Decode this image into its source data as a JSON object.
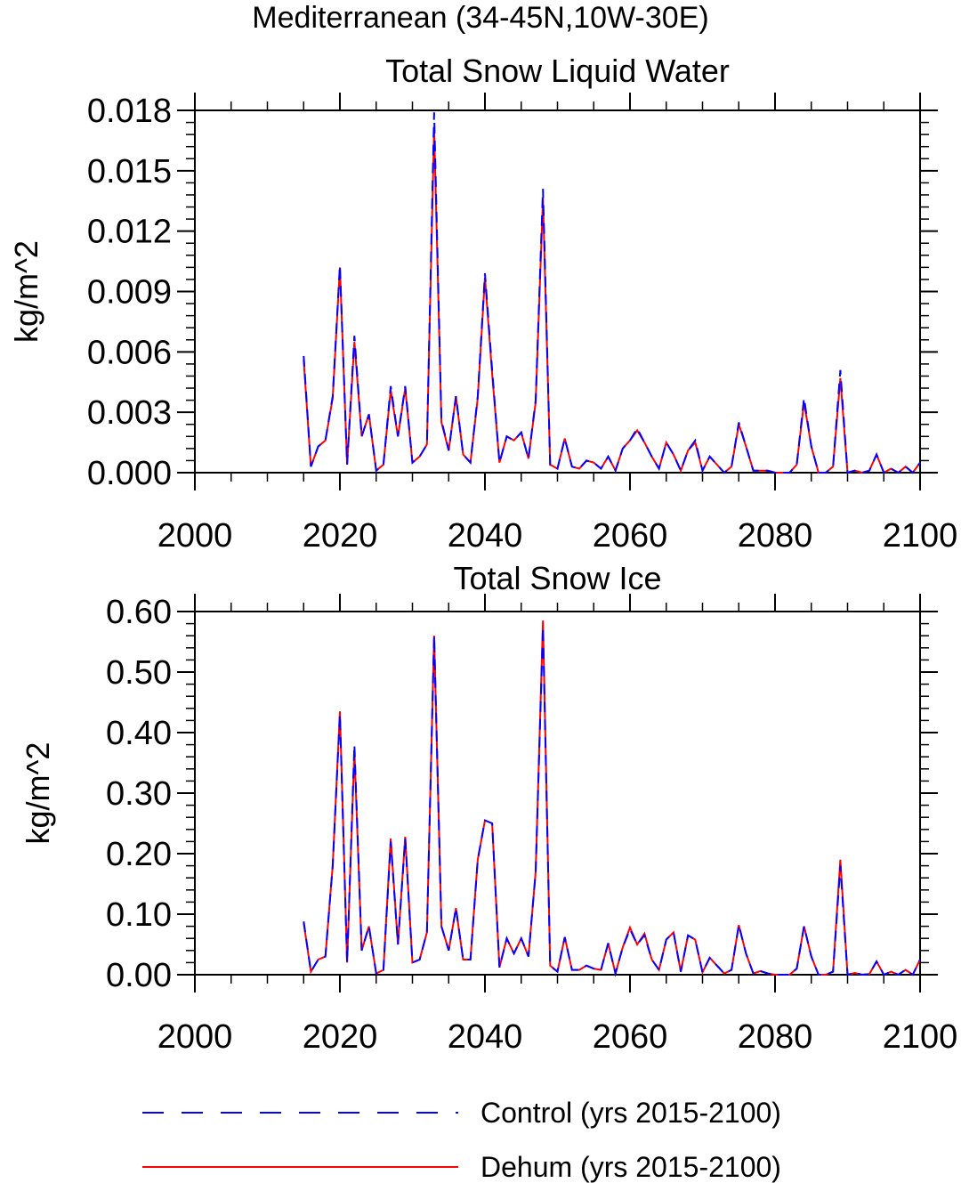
{
  "page_title": "Mediterranean (34-45N,10W-30E)",
  "chart_data": [
    {
      "type": "line",
      "title": "Total Snow Liquid Water",
      "ylabel": "kg/m^2",
      "xlim": [
        2000,
        2100
      ],
      "ylim": [
        0,
        0.018
      ],
      "xticks": [
        "2000",
        "2020",
        "2040",
        "2060",
        "2080",
        "2100"
      ],
      "yticks": [
        "0.000",
        "0.003",
        "0.006",
        "0.009",
        "0.012",
        "0.015",
        "0.018"
      ],
      "x": [
        2015,
        2016,
        2017,
        2018,
        2019,
        2020,
        2021,
        2022,
        2023,
        2024,
        2025,
        2026,
        2027,
        2028,
        2029,
        2030,
        2031,
        2032,
        2033,
        2034,
        2035,
        2036,
        2037,
        2038,
        2039,
        2040,
        2041,
        2042,
        2043,
        2044,
        2045,
        2046,
        2047,
        2048,
        2049,
        2050,
        2051,
        2052,
        2053,
        2054,
        2055,
        2056,
        2057,
        2058,
        2059,
        2060,
        2061,
        2062,
        2063,
        2064,
        2065,
        2066,
        2067,
        2068,
        2069,
        2070,
        2071,
        2072,
        2073,
        2074,
        2075,
        2076,
        2077,
        2078,
        2079,
        2080,
        2081,
        2082,
        2083,
        2084,
        2085,
        2086,
        2087,
        2088,
        2089,
        2090,
        2091,
        2092,
        2093,
        2094,
        2095,
        2096,
        2097,
        2098,
        2099,
        2100
      ],
      "series": [
        {
          "name": "Control (yrs 2015-2100)",
          "color": "#0000ff",
          "dash": true,
          "values": [
            0.0058,
            0.0003,
            0.0013,
            0.0016,
            0.0038,
            0.0103,
            0.0004,
            0.0068,
            0.0018,
            0.0029,
            0.0001,
            0.0004,
            0.0043,
            0.0018,
            0.0043,
            0.0005,
            0.0008,
            0.0014,
            0.0179,
            0.0026,
            0.0011,
            0.0038,
            0.0009,
            0.0005,
            0.0038,
            0.0099,
            0.0051,
            0.0005,
            0.0018,
            0.0016,
            0.002,
            0.0007,
            0.0036,
            0.0141,
            0.0004,
            0.0002,
            0.0017,
            0.0003,
            0.0002,
            0.0006,
            0.0005,
            0.0002,
            0.0008,
            0.0001,
            0.0012,
            0.0016,
            0.0022,
            0.0015,
            0.0008,
            0.0002,
            0.0015,
            0.0009,
            0.0001,
            0.0011,
            0.0016,
            0.0001,
            0.0008,
            0.0004,
            0.0,
            0.0003,
            0.0025,
            0.0013,
            0.0001,
            0.0001,
            0.0001,
            0.0,
            0.0,
            0.0,
            0.0004,
            0.0037,
            0.0013,
            0.0,
            0.0,
            0.0003,
            0.0051,
            0.0,
            0.0001,
            0.0,
            0.0001,
            0.0009,
            0.0,
            0.0002,
            0.0,
            0.0003,
            0.0,
            0.0005
          ]
        },
        {
          "name": "Dehum (yrs 2015-2100)",
          "color": "#ff0000",
          "dash": false,
          "values": [
            0.0056,
            0.0003,
            0.0013,
            0.0016,
            0.0037,
            0.0102,
            0.0004,
            0.0065,
            0.0018,
            0.0029,
            0.0001,
            0.0004,
            0.0041,
            0.0018,
            0.0042,
            0.0005,
            0.0008,
            0.0014,
            0.0171,
            0.0025,
            0.0011,
            0.0038,
            0.0009,
            0.0005,
            0.0037,
            0.0097,
            0.0049,
            0.0005,
            0.0018,
            0.0016,
            0.002,
            0.0007,
            0.0035,
            0.0136,
            0.0004,
            0.0002,
            0.0017,
            0.0003,
            0.0002,
            0.0006,
            0.0005,
            0.0002,
            0.0008,
            0.0001,
            0.0012,
            0.0016,
            0.0021,
            0.0015,
            0.0008,
            0.0002,
            0.0015,
            0.0009,
            0.0001,
            0.0011,
            0.0015,
            0.0001,
            0.0008,
            0.0004,
            0.0,
            0.0003,
            0.0024,
            0.0013,
            0.0001,
            0.0001,
            0.0001,
            0.0,
            0.0,
            0.0,
            0.0004,
            0.0035,
            0.0013,
            0.0,
            0.0,
            0.0003,
            0.0047,
            0.0,
            0.0001,
            0.0,
            0.0001,
            0.0009,
            0.0,
            0.0002,
            0.0,
            0.0003,
            0.0,
            0.0005
          ]
        }
      ]
    },
    {
      "type": "line",
      "title": "Total Snow Ice",
      "ylabel": "kg/m^2",
      "xlim": [
        2000,
        2100
      ],
      "ylim": [
        0,
        0.6
      ],
      "xticks": [
        "2000",
        "2020",
        "2040",
        "2060",
        "2080",
        "2100"
      ],
      "yticks": [
        "0.00",
        "0.10",
        "0.20",
        "0.30",
        "0.40",
        "0.50",
        "0.60"
      ],
      "x": [
        2015,
        2016,
        2017,
        2018,
        2019,
        2020,
        2021,
        2022,
        2023,
        2024,
        2025,
        2026,
        2027,
        2028,
        2029,
        2030,
        2031,
        2032,
        2033,
        2034,
        2035,
        2036,
        2037,
        2038,
        2039,
        2040,
        2041,
        2042,
        2043,
        2044,
        2045,
        2046,
        2047,
        2048,
        2049,
        2050,
        2051,
        2052,
        2053,
        2054,
        2055,
        2056,
        2057,
        2058,
        2059,
        2060,
        2061,
        2062,
        2063,
        2064,
        2065,
        2066,
        2067,
        2068,
        2069,
        2070,
        2071,
        2072,
        2073,
        2074,
        2075,
        2076,
        2077,
        2078,
        2079,
        2080,
        2081,
        2082,
        2083,
        2084,
        2085,
        2086,
        2087,
        2088,
        2089,
        2090,
        2091,
        2092,
        2093,
        2094,
        2095,
        2096,
        2097,
        2098,
        2099,
        2100
      ],
      "series": [
        {
          "name": "Control (yrs 2015-2100)",
          "color": "#0000ff",
          "dash": true,
          "values": [
            0.088,
            0.005,
            0.025,
            0.03,
            0.18,
            0.43,
            0.02,
            0.38,
            0.04,
            0.08,
            0.002,
            0.008,
            0.22,
            0.05,
            0.225,
            0.02,
            0.025,
            0.07,
            0.56,
            0.08,
            0.04,
            0.11,
            0.025,
            0.025,
            0.19,
            0.255,
            0.25,
            0.012,
            0.06,
            0.035,
            0.06,
            0.03,
            0.17,
            0.575,
            0.015,
            0.005,
            0.062,
            0.008,
            0.008,
            0.015,
            0.01,
            0.008,
            0.052,
            0.002,
            0.045,
            0.075,
            0.05,
            0.065,
            0.025,
            0.008,
            0.058,
            0.07,
            0.005,
            0.065,
            0.058,
            0.004,
            0.028,
            0.015,
            0.002,
            0.008,
            0.082,
            0.035,
            0.002,
            0.006,
            0.002,
            0.0,
            0.0,
            0.0,
            0.01,
            0.08,
            0.03,
            0.0,
            0.0,
            0.005,
            0.18,
            0.0,
            0.003,
            0.0,
            0.001,
            0.022,
            0.0,
            0.005,
            0.0,
            0.008,
            0.0,
            0.025
          ]
        },
        {
          "name": "Dehum (yrs 2015-2100)",
          "color": "#ff0000",
          "dash": false,
          "values": [
            0.086,
            0.005,
            0.025,
            0.03,
            0.18,
            0.435,
            0.02,
            0.37,
            0.04,
            0.08,
            0.002,
            0.008,
            0.225,
            0.05,
            0.228,
            0.02,
            0.025,
            0.07,
            0.56,
            0.08,
            0.04,
            0.11,
            0.025,
            0.025,
            0.19,
            0.255,
            0.25,
            0.012,
            0.06,
            0.035,
            0.06,
            0.03,
            0.17,
            0.585,
            0.015,
            0.005,
            0.062,
            0.008,
            0.008,
            0.015,
            0.01,
            0.008,
            0.052,
            0.002,
            0.045,
            0.078,
            0.05,
            0.068,
            0.025,
            0.008,
            0.058,
            0.07,
            0.005,
            0.065,
            0.058,
            0.004,
            0.028,
            0.015,
            0.002,
            0.008,
            0.082,
            0.035,
            0.002,
            0.006,
            0.002,
            0.0,
            0.0,
            0.0,
            0.01,
            0.08,
            0.03,
            0.0,
            0.0,
            0.005,
            0.19,
            0.0,
            0.003,
            0.0,
            0.001,
            0.022,
            0.0,
            0.005,
            0.0,
            0.008,
            0.0,
            0.025
          ]
        }
      ]
    }
  ],
  "legend": [
    {
      "label": "Control (yrs 2015-2100)",
      "color": "#0000ff",
      "dash": true
    },
    {
      "label": "Dehum (yrs 2015-2100)",
      "color": "#ff0000",
      "dash": false
    }
  ]
}
